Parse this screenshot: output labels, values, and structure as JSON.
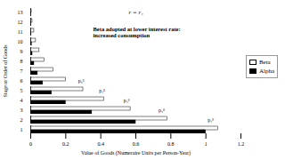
{
  "chart_data": {
    "type": "bar",
    "orientation": "horizontal",
    "title": "r = r₁",
    "annotations": [
      {
        "text": "Beta adopted at lower interest rate:\nincreased consumption",
        "category": "11"
      },
      {
        "text": "p₁ᵝ",
        "category": "2",
        "x": 1.0
      },
      {
        "text": "p₂ᵝ",
        "category": "3",
        "x": 0.72
      },
      {
        "text": "p₃ᵝ",
        "category": "4",
        "x": 0.52
      },
      {
        "text": "p₄ᵝ",
        "category": "5",
        "x": 0.38
      },
      {
        "text": "p₅ᵝ",
        "category": "6",
        "x": 0.26
      }
    ],
    "categories": [
      "1",
      "2",
      "3",
      "4",
      "5",
      "6",
      "7",
      "8",
      "9",
      "10",
      "11",
      "12",
      "13"
    ],
    "series": [
      {
        "name": "Beta",
        "color": "#ffffff",
        "values": [
          1.07,
          0.78,
          0.57,
          0.42,
          0.3,
          0.2,
          0.13,
          0.08,
          0.05,
          0.03,
          0.02,
          0.01,
          0.005
        ]
      },
      {
        "name": "Alpha",
        "color": "#000000",
        "values": [
          1.0,
          0.6,
          0.35,
          0.2,
          0.12,
          0.07,
          0.04,
          0.02,
          0.01,
          0.006,
          0.004,
          0.002,
          0.001
        ]
      }
    ],
    "xlim": [
      0,
      1.2
    ],
    "xticks": [
      0,
      0.2,
      0.4,
      0.6,
      0.8,
      1,
      1.2
    ],
    "x_label": "Value of Goods (Numeraire Units per Person-Year)",
    "y_label": "Stage or Order of Goods",
    "legend": "right",
    "grid": false
  }
}
